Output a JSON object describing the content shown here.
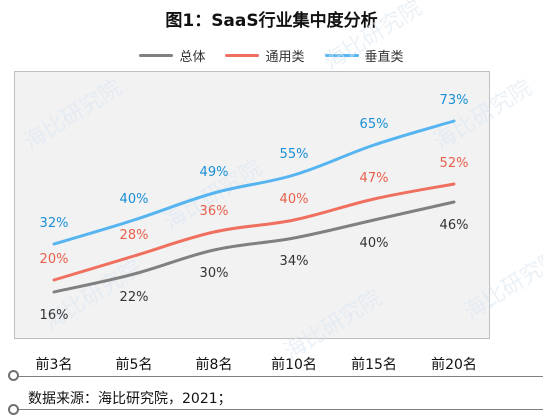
{
  "title": "图1：SaaS行业集中度分析",
  "source": "数据来源：海比研究院，2021；",
  "watermark": "海比研究院",
  "chart_data": {
    "type": "line",
    "title": "图1：SaaS行业集中度分析",
    "categories": [
      "前3名",
      "前5名",
      "前8名",
      "前10名",
      "前15名",
      "前20名"
    ],
    "series": [
      {
        "name": "总体",
        "values": [
          16,
          22,
          30,
          34,
          40,
          46
        ],
        "color": "#808080",
        "label_color": "#333333"
      },
      {
        "name": "通用类",
        "values": [
          20,
          28,
          36,
          40,
          47,
          52
        ],
        "color": "#f07060",
        "label_color": "#e8604c"
      },
      {
        "name": "垂直类",
        "values": [
          32,
          40,
          49,
          55,
          65,
          73
        ],
        "color": "#56b4f0",
        "label_color": "#1a8fd6"
      }
    ],
    "value_suffix": "%",
    "legend_position": "top",
    "grid": false,
    "line_style": "smooth"
  }
}
